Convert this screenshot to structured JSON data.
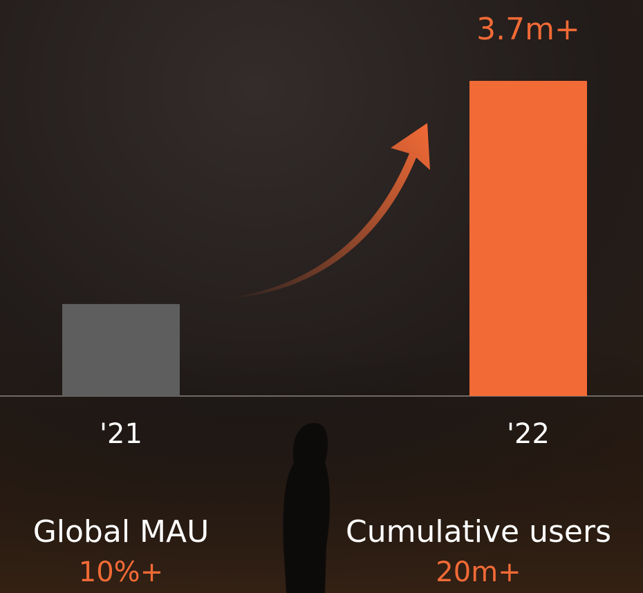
{
  "chart_data": {
    "type": "bar",
    "categories": [
      "'21",
      "'22"
    ],
    "values": [
      1.08,
      3.7
    ],
    "value_labels": [
      null,
      "3.7m+"
    ],
    "colors": [
      "#5e5e5e",
      "#f26a36"
    ],
    "ylim": [
      0,
      4
    ],
    "annotations": [
      {
        "label": "Global MAU",
        "value": "10%+"
      },
      {
        "label": "Cumulative users",
        "value": "20m+"
      }
    ]
  }
}
